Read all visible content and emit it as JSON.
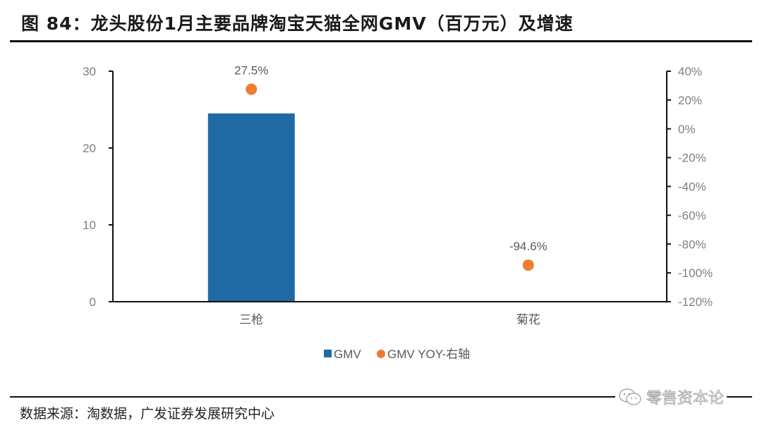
{
  "figure": {
    "title": "图 84：龙头股份1月主要品牌淘宝天猫全网GMV（百万元）及增速",
    "source": "数据来源：淘数据，广发证券发展研究中心",
    "watermark": "零售资本论"
  },
  "colors": {
    "bar": "#1f6aa5",
    "point": "#ed7d31",
    "axis": "#111111",
    "tick_label": "#7f7f7f"
  },
  "chart_data": {
    "type": "bar",
    "title": "龙头股份1月主要品牌淘宝天猫全网GMV（百万元）及增速",
    "categories": [
      "三枪",
      "菊花"
    ],
    "series": [
      {
        "name": "GMV",
        "type": "bar",
        "axis": "left",
        "values": [
          24.5,
          0.0
        ]
      },
      {
        "name": "GMV YOY-右轴",
        "type": "scatter",
        "axis": "right",
        "values": [
          27.5,
          -94.6
        ],
        "labels": [
          "27.5%",
          "-94.6%"
        ]
      }
    ],
    "left_axis": {
      "min": 0,
      "max": 30,
      "ticks": [
        0,
        10,
        20,
        30
      ],
      "tick_labels": [
        "0",
        "10",
        "20",
        "30"
      ]
    },
    "right_axis": {
      "min": -120,
      "max": 40,
      "ticks": [
        40,
        20,
        0,
        -20,
        -40,
        -60,
        -80,
        -100,
        -120
      ],
      "tick_labels": [
        "40%",
        "20%",
        "0%",
        "-20%",
        "-40%",
        "-60%",
        "-80%",
        "-100%",
        "-120%"
      ]
    },
    "xlabel": "",
    "ylabel": "",
    "grid": false,
    "legend": {
      "position": "bottom",
      "entries": [
        "GMV",
        "GMV YOY-右轴"
      ]
    }
  }
}
